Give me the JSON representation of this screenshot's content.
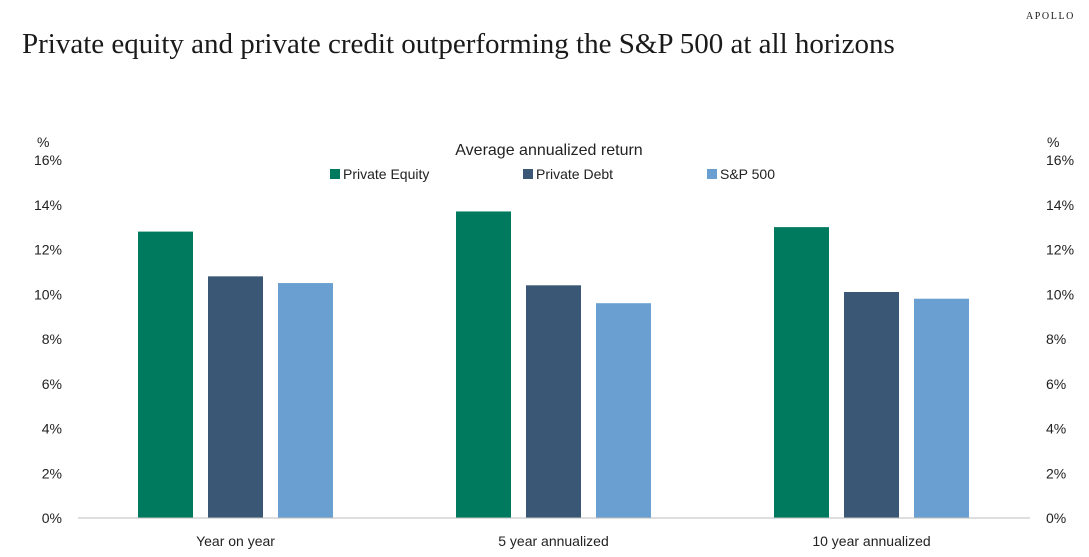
{
  "header": {
    "brand": "APOLLO",
    "headline": "Private equity and private credit outperforming the S&P 500 at all horizons"
  },
  "chart_data": {
    "type": "bar",
    "title": "Average annualized return",
    "y_unit_left": "%",
    "y_unit_right": "%",
    "categories": [
      "Year on year",
      "5 year annualized",
      "10 year annualized"
    ],
    "series": [
      {
        "name": "Private Equity",
        "color": "#007a5e",
        "values": [
          12.8,
          13.7,
          13.0
        ]
      },
      {
        "name": "Private Debt",
        "color": "#3a5775",
        "values": [
          10.8,
          10.4,
          10.1
        ]
      },
      {
        "name": "S&P 500",
        "color": "#699fd1",
        "values": [
          10.5,
          9.6,
          9.8
        ]
      }
    ],
    "ylim": [
      0,
      16
    ],
    "yticks": [
      0,
      2,
      4,
      6,
      8,
      10,
      12,
      14,
      16
    ],
    "ytick_labels": [
      "0%",
      "2%",
      "4%",
      "6%",
      "8%",
      "10%",
      "12%",
      "14%",
      "16%"
    ],
    "dual_y_axis": true,
    "grid": false,
    "legend": "top-center"
  }
}
